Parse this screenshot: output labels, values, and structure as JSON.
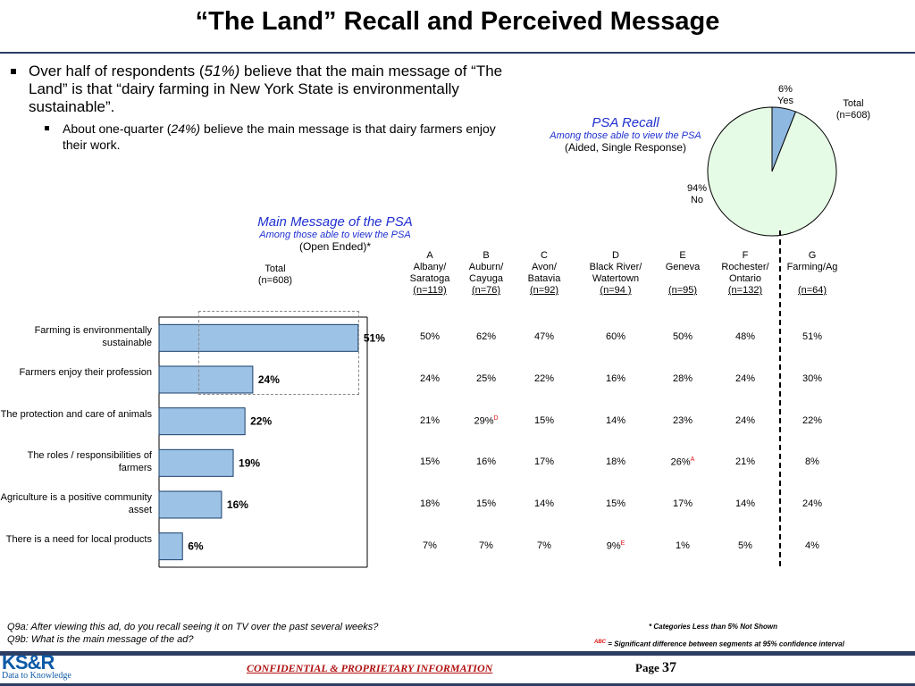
{
  "title": "“The Land” Recall and Perceived Message",
  "bullets": {
    "main_pre": "Over half of respondents (",
    "main_em": "51%)",
    "main_post": " believe that the main message of “The Land” is that “dairy farming in New York State is environmentally sustainable”.",
    "sub_pre": "About one-quarter (",
    "sub_em": "24%)",
    "sub_post": " believe the main message is that dairy farmers enjoy their work."
  },
  "psa_recall": {
    "title": "PSA Recall",
    "subtitle": "Among those able to view the PSA",
    "note": "(Aided, Single Response)"
  },
  "main_message": {
    "title": "Main Message of the PSA",
    "subtitle": "Among those able to view the PSA",
    "note": "(Open Ended)*"
  },
  "pie": {
    "total_label": "Total",
    "total_n": "(n=608)",
    "yes_pct": "6%",
    "yes_label": "Yes",
    "no_pct": "94%",
    "no_label": "No",
    "fill_color": "#e6fbe6",
    "yes_color": "#8fb8e0"
  },
  "bar_total": {
    "label": "Total",
    "n": "(n=608)"
  },
  "columns": [
    {
      "letter": "A",
      "line1": "Albany/",
      "line2": "Saratoga",
      "n": "(n=119)"
    },
    {
      "letter": "B",
      "line1": "Auburn/",
      "line2": "Cayuga",
      "n": "(n=76)"
    },
    {
      "letter": "C",
      "line1": "Avon/",
      "line2": "Batavia",
      "n": "(n=92)"
    },
    {
      "letter": "D",
      "line1": "Black River/",
      "line2": "Watertown",
      "n": "(n=94 )"
    },
    {
      "letter": "E",
      "line1": "Geneva",
      "line2": "",
      "n": "(n=95)"
    },
    {
      "letter": "F",
      "line1": "Rochester/",
      "line2": "Ontario",
      "n": "(n=132)"
    },
    {
      "letter": "G",
      "line1": "Farming/Ag",
      "line2": "",
      "n": "(n=64)"
    }
  ],
  "table_rows": [
    {
      "cells": [
        "50%",
        "62%",
        "47%",
        "60%",
        "50%",
        "48%",
        "51%"
      ],
      "sups": [
        "",
        "",
        "",
        "",
        "",
        "",
        ""
      ]
    },
    {
      "cells": [
        "24%",
        "25%",
        "22%",
        "16%",
        "28%",
        "24%",
        "30%"
      ],
      "sups": [
        "",
        "",
        "",
        "",
        "",
        "",
        ""
      ]
    },
    {
      "cells": [
        "21%",
        "29%",
        "15%",
        "14%",
        "23%",
        "24%",
        "22%"
      ],
      "sups": [
        "",
        "D",
        "",
        "",
        "",
        "",
        ""
      ]
    },
    {
      "cells": [
        "15%",
        "16%",
        "17%",
        "18%",
        "26%",
        "21%",
        "8%"
      ],
      "sups": [
        "",
        "",
        "",
        "",
        "A",
        "",
        ""
      ]
    },
    {
      "cells": [
        "18%",
        "15%",
        "14%",
        "15%",
        "17%",
        "14%",
        "24%"
      ],
      "sups": [
        "",
        "",
        "",
        "",
        "",
        "",
        ""
      ]
    },
    {
      "cells": [
        "7%",
        "7%",
        "7%",
        "9%",
        "1%",
        "5%",
        "4%"
      ],
      "sups": [
        "",
        "",
        "",
        "E",
        "",
        "",
        ""
      ]
    }
  ],
  "chart_data": [
    {
      "type": "bar",
      "orientation": "horizontal",
      "categories": [
        "Farming is environmentally sustainable",
        "Farmers enjoy their profession",
        "The protection and care of animals",
        "The roles / responsibilities of farmers",
        "Agriculture is a positive community asset",
        "There is a need for local products"
      ],
      "values": [
        51,
        24,
        22,
        19,
        16,
        6
      ],
      "data_labels": [
        "51%",
        "24%",
        "22%",
        "19%",
        "16%",
        "6%"
      ],
      "title": "Main Message of the PSA",
      "xlim": [
        0,
        100
      ],
      "bar_color": "#9cc2e5"
    },
    {
      "type": "pie",
      "categories": [
        "Yes",
        "No"
      ],
      "values": [
        6,
        94
      ],
      "title": "PSA Recall"
    }
  ],
  "footer": {
    "q9a": "Q9a:  After viewing this ad, do you recall seeing it on TV over the past several weeks?",
    "q9b": "Q9b:  What is the main message of the ad?",
    "note1": "* Categories Less than 5% Not Shown",
    "note2_sup": "ABC",
    "note2": " = Significant difference between segments at 95% confidence interval",
    "confidential": "CONFIDENTIAL & PROPRIETARY INFORMATION",
    "page_label": "Page ",
    "page_num": "37",
    "logo_main": "KS&R",
    "logo_tag": "Data to Knowledge"
  }
}
